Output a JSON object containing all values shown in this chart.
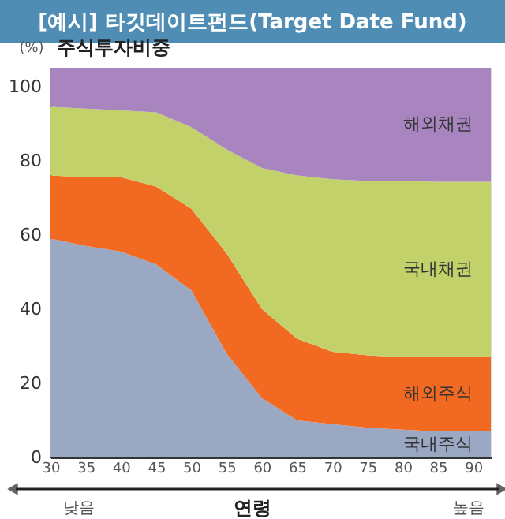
{
  "chart_data": {
    "type": "area",
    "stacked": true,
    "title": "[예시] 타깃데이트펀드(Target Date Fund)",
    "xlabel": "연령",
    "ylabel": "주식투자비중",
    "annotations": [
      "(%)",
      "낮음",
      "높음"
    ],
    "x": [
      30,
      35,
      40,
      45,
      50,
      55,
      60,
      65,
      70,
      75,
      80,
      85,
      90,
      92.5
    ],
    "series": [
      {
        "name": "국내주식",
        "color": "#9aa8c4",
        "values": [
          59,
          57,
          55.5,
          52,
          45,
          28,
          16,
          10,
          9,
          8,
          7.5,
          7,
          7,
          7
        ]
      },
      {
        "name": "해외주식",
        "color": "#f26a21",
        "values": [
          17,
          18.5,
          20,
          21,
          22,
          27,
          24,
          22,
          19.5,
          19.5,
          19.5,
          20,
          20,
          20
        ]
      },
      {
        "name": "국내채권",
        "color": "#c3d16a",
        "values": [
          18.5,
          18.5,
          18,
          20,
          22,
          28,
          38,
          44,
          46.5,
          47,
          47.5,
          47.3,
          47.3,
          47.3
        ]
      },
      {
        "name": "해외채권",
        "color": "#a985c0",
        "values": [
          10.5,
          11,
          11.5,
          12,
          16,
          22,
          27,
          29,
          30,
          30.5,
          30.5,
          30.7,
          30.7,
          30.7
        ]
      }
    ],
    "xlim": [
      30,
      92.5
    ],
    "ylim": [
      0,
      105
    ],
    "xticks": [
      30,
      35,
      40,
      45,
      50,
      55,
      60,
      65,
      70,
      75,
      80,
      85,
      90
    ],
    "yticks": [
      0,
      20,
      40,
      60,
      80,
      100
    ],
    "legend": false,
    "grid": false
  }
}
